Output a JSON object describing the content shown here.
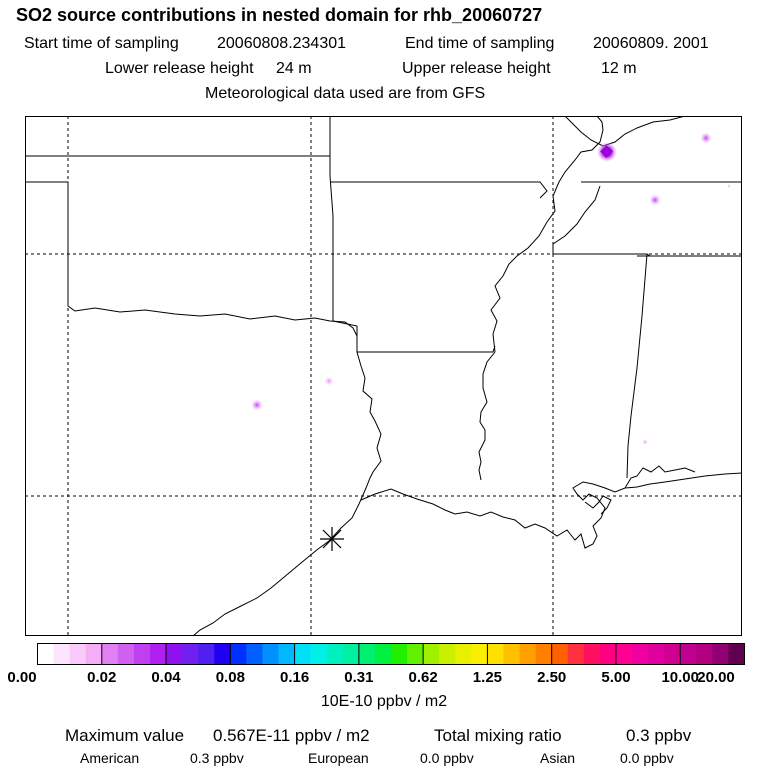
{
  "header": {
    "title": "SO2 source contributions in nested domain for rhb_20060727",
    "start_label": "Start time of sampling",
    "start_value": "20060808.234301",
    "end_label": "End time of sampling",
    "end_value": "20060809.  2001",
    "lower_label": "Lower release height",
    "lower_value": "24 m",
    "upper_label": "Upper release height",
    "upper_value": "12 m",
    "met": "Meteorological data used are from GFS"
  },
  "colorbar": {
    "tick_labels": [
      "0.00",
      "0.02",
      "0.04",
      "0.08",
      "0.16",
      "0.31",
      "0.62",
      "1.25",
      "2.50",
      "5.00",
      "10.00",
      "20.00"
    ],
    "units": "10E-10 ppbv / m2",
    "colors": [
      "#ffffff",
      "#fde6fd",
      "#facafa",
      "#f5aef5",
      "#e080f2",
      "#d060f0",
      "#c040f0",
      "#b020f0",
      "#9010f0",
      "#7020f0",
      "#5020f0",
      "#2000f0",
      "#0030ff",
      "#0060ff",
      "#0090ff",
      "#00b8ff",
      "#00e0f8",
      "#00f0e8",
      "#00f0c0",
      "#00f0a0",
      "#00f070",
      "#00f040",
      "#20f000",
      "#60f000",
      "#a0f000",
      "#c8f000",
      "#e8f000",
      "#f8f000",
      "#ffe000",
      "#ffc000",
      "#ffa000",
      "#ff8000",
      "#ff6000",
      "#ff3040",
      "#ff1060",
      "#ff0080",
      "#ff0090",
      "#f000a0",
      "#e000a0",
      "#d00090",
      "#c00090",
      "#b00080",
      "#900070",
      "#600050"
    ]
  },
  "footer": {
    "max_label": "Maximum value",
    "max_value": "0.567E-11 ppbv / m2",
    "total_label": "Total mixing ratio",
    "total_value": "0.3 ppbv",
    "regions": [
      {
        "name": "American",
        "value": "0.3 ppbv"
      },
      {
        "name": "European",
        "value": "0.0 ppbv"
      },
      {
        "name": "Asian",
        "value": "0.0 ppbv"
      }
    ]
  },
  "map": {
    "marker": "source-location-asterisk",
    "colors": {
      "high": "#9b00d6",
      "mid": "#c030e8",
      "low": "#f0a0f8"
    }
  }
}
